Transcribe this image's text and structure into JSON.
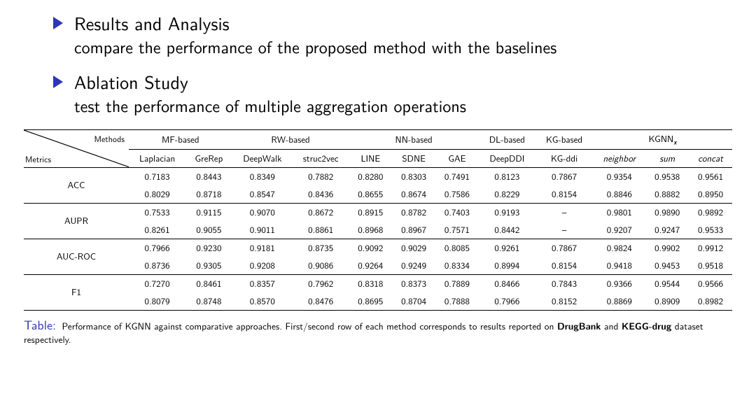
{
  "accent_color": "#2e36b8",
  "bullet1": {
    "title": "Results and Analysis",
    "sub": "compare the performance of the proposed method with the baselines"
  },
  "bullet2": {
    "title": "Ablation Study",
    "sub": "test the performance of multiple aggregation operations"
  },
  "diag": {
    "top": "Methods",
    "left": "Metrics"
  },
  "group_headers": {
    "mf": "MF-based",
    "rw": "RW-based",
    "nn": "NN-based",
    "dl": "DL-based",
    "kg": "KG-based",
    "kgnn": "KGNN",
    "kgnn_sub": "x"
  },
  "col_headers": {
    "laplacian": "Laplacian",
    "grerep": "GreRep",
    "deepwalk": "DeepWalk",
    "struc2vec": "struc2vec",
    "line": "LINE",
    "sdne": "SDNE",
    "gae": "GAE",
    "deepddi": "DeepDDI",
    "kgddi": "KG-ddi",
    "neighbor": "neighbor",
    "sum": "sum",
    "concat": "concat"
  },
  "metrics": [
    "ACC",
    "AUPR",
    "AUC-ROC",
    "F1"
  ],
  "table": {
    "ACC": {
      "r1": [
        "0.7183",
        "0.8443",
        "0.8349",
        "0.7882",
        "0.8280",
        "0.8303",
        "0.7491",
        "0.8123",
        "0.7867",
        "0.9354",
        "0.9538",
        "0.9561"
      ],
      "r2": [
        "0.8029",
        "0.8718",
        "0.8547",
        "0.8436",
        "0.8655",
        "0.8674",
        "0.7586",
        "0.8229",
        "0.8154",
        "0.8846",
        "0.8882",
        "0.8950"
      ],
      "bold": [
        false,
        false,
        false,
        false,
        false,
        false,
        false,
        false,
        false,
        false,
        false,
        true
      ]
    },
    "AUPR": {
      "r1": [
        "0.7533",
        "0.9115",
        "0.9070",
        "0.8672",
        "0.8915",
        "0.8782",
        "0.7403",
        "0.9193",
        "–",
        "0.9801",
        "0.9890",
        "0.9892"
      ],
      "r2": [
        "0.8261",
        "0.9055",
        "0.9011",
        "0.8861",
        "0.8968",
        "0.8967",
        "0.7571",
        "0.8442",
        "–",
        "0.9207",
        "0.9247",
        "0.9533"
      ],
      "bold": [
        false,
        false,
        false,
        false,
        false,
        false,
        false,
        false,
        false,
        false,
        false,
        true
      ]
    },
    "AUC-ROC": {
      "r1": [
        "0.7966",
        "0.9230",
        "0.9181",
        "0.8735",
        "0.9092",
        "0.9029",
        "0.8085",
        "0.9261",
        "0.7867",
        "0.9824",
        "0.9902",
        "0.9912"
      ],
      "r2": [
        "0.8736",
        "0.9305",
        "0.9208",
        "0.9086",
        "0.9264",
        "0.9249",
        "0.8334",
        "0.8994",
        "0.8154",
        "0.9418",
        "0.9453",
        "0.9518"
      ],
      "bold": [
        false,
        false,
        false,
        false,
        false,
        false,
        false,
        false,
        false,
        false,
        false,
        true
      ]
    },
    "F1": {
      "r1": [
        "0.7270",
        "0.8461",
        "0.8357",
        "0.7962",
        "0.8318",
        "0.8373",
        "0.7889",
        "0.8466",
        "0.7843",
        "0.9366",
        "0.9544",
        "0.9566"
      ],
      "r2": [
        "0.8079",
        "0.8748",
        "0.8570",
        "0.8476",
        "0.8695",
        "0.8704",
        "0.7888",
        "0.7966",
        "0.8152",
        "0.8869",
        "0.8909",
        "0.8982"
      ],
      "bold": [
        false,
        false,
        false,
        false,
        false,
        false,
        false,
        false,
        false,
        false,
        false,
        true
      ]
    }
  },
  "caption": {
    "label": "Table:",
    "text1": "Performance of KGNN against comparative approaches. First/second row of each method corresponds to results reported on ",
    "bold1": "DrugBank",
    "mid": " and ",
    "bold2": "KEGG-drug",
    "text2": " dataset respectively."
  }
}
